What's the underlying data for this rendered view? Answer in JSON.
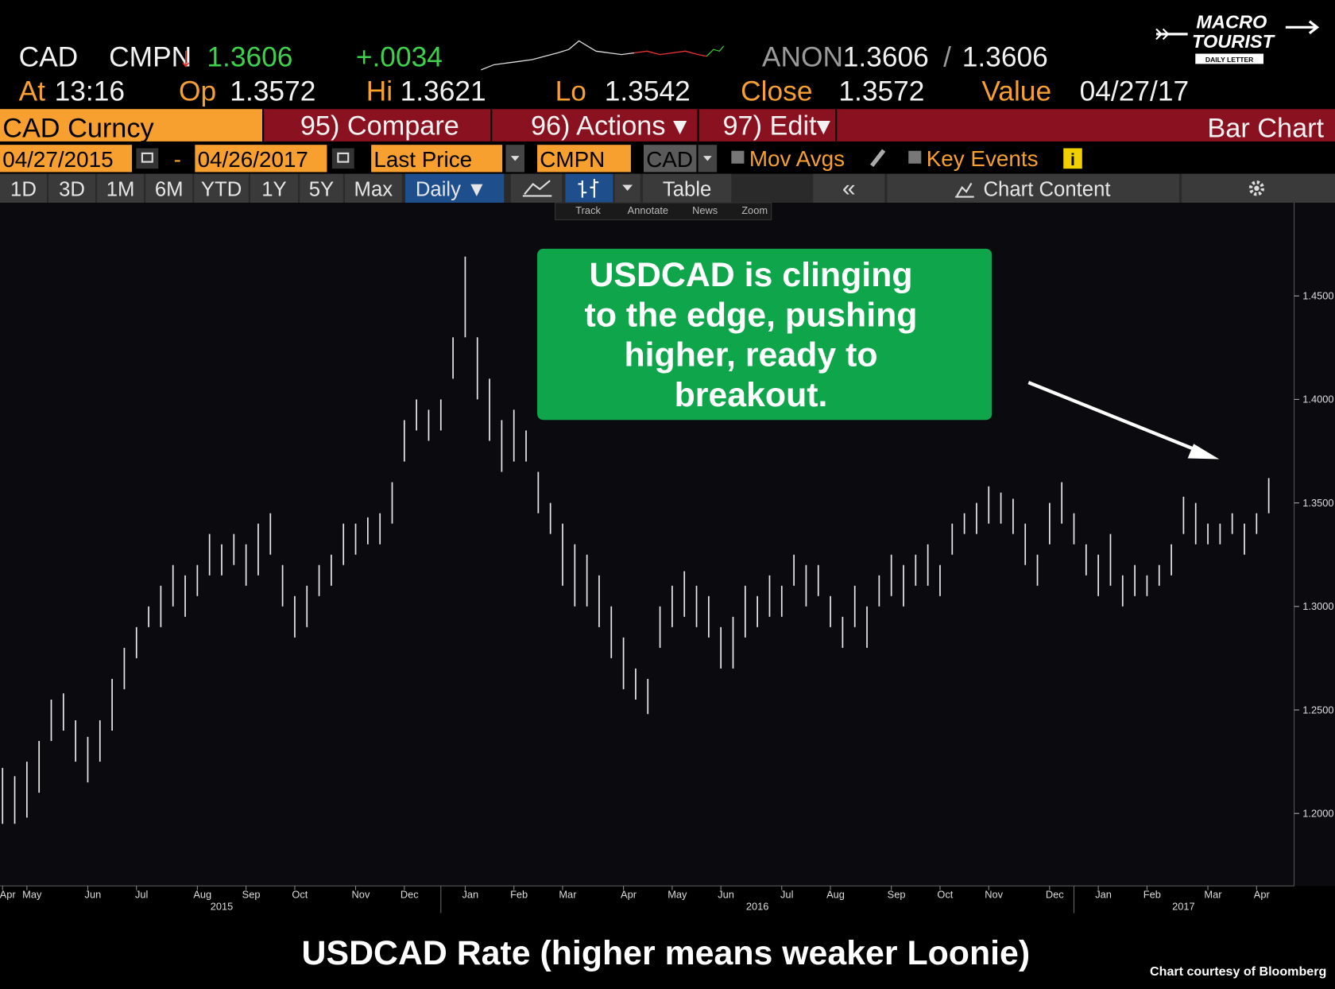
{
  "terminal": {
    "row1": {
      "ticker": "CAD",
      "source": "CMPN",
      "arrow": "↓",
      "last": "1.3606",
      "change": "+.0034",
      "pricing": "ANON",
      "bid": "1.3606",
      "sep": "/",
      "ask": "1.3606"
    },
    "row2": {
      "at_label": "At",
      "at": "13:16",
      "op_label": "Op",
      "op": "1.3572",
      "hi_label": "Hi",
      "hi": "1.3621",
      "lo_label": "Lo",
      "lo": "1.3542",
      "close_label": "Close",
      "close": "1.3572",
      "value_label": "Value",
      "value": "04/27/17"
    },
    "menu": {
      "security": "CAD Curncy",
      "compare": "95) Compare",
      "actions": "96) Actions ▾",
      "edit": "97) Edit▾",
      "chart_type": "Bar Chart"
    },
    "controls": {
      "start": "04/27/2015",
      "dash": "-",
      "end": "04/26/2017",
      "field": "Last Price",
      "source": "CMPN",
      "currency": "CAD",
      "mov_avgs": "Mov Avgs",
      "key_events": "Key Events",
      "info": "i"
    },
    "periods": [
      "1D",
      "3D",
      "1M",
      "6M",
      "YTD",
      "1Y",
      "5Y",
      "Max"
    ],
    "frequency": "Daily ▼",
    "table": "Table",
    "collapse": "«",
    "chart_content": "Chart Content",
    "tools": [
      "Track",
      "Annotate",
      "News",
      "Zoom"
    ]
  },
  "logo": {
    "line1": "MACRO",
    "line2": "TOURIST",
    "line3": "DAILY LETTER"
  },
  "chart_data": {
    "type": "ohlc",
    "title": "USDCAD Rate (higher means weaker Loonie)",
    "credit": "Chart courtesy of Bloomberg",
    "annotation": [
      "USDCAD is clinging",
      "to the edge, pushing",
      "higher, ready to",
      "breakout."
    ],
    "color": "#e8e8e8",
    "grid": false,
    "categories": [
      "Apr",
      null,
      "May",
      null,
      null,
      null,
      null,
      "Jun",
      null,
      null,
      null,
      "Jul",
      null,
      null,
      null,
      null,
      "Aug",
      null,
      null,
      null,
      "Sep",
      null,
      null,
      null,
      "Oct",
      null,
      null,
      null,
      null,
      "Nov",
      null,
      null,
      null,
      "Dec",
      null,
      null,
      null,
      null,
      "Jan",
      null,
      null,
      null,
      "Feb",
      null,
      null,
      null,
      "Mar",
      null,
      null,
      null,
      null,
      "Apr",
      null,
      null,
      null,
      "May",
      null,
      null,
      null,
      "Jun",
      null,
      null,
      null,
      null,
      "Jul",
      null,
      null,
      null,
      "Aug",
      null,
      null,
      null,
      null,
      "Sep",
      null,
      null,
      null,
      "Oct",
      null,
      null,
      null,
      "Nov",
      null,
      null,
      null,
      null,
      "Dec",
      null,
      null,
      null,
      "Jan",
      null,
      null,
      null,
      "Feb",
      null,
      null,
      null,
      null,
      "Mar",
      null,
      null,
      null,
      "Apr",
      null
    ],
    "years": [
      "2015",
      "2016",
      "2017"
    ],
    "high": [
      1.222,
      1.218,
      1.225,
      1.235,
      1.255,
      1.258,
      1.245,
      1.237,
      1.245,
      1.265,
      1.28,
      1.29,
      1.3,
      1.31,
      1.32,
      1.315,
      1.32,
      1.335,
      1.33,
      1.335,
      1.33,
      1.34,
      1.345,
      1.32,
      1.305,
      1.31,
      1.32,
      1.325,
      1.34,
      1.34,
      1.343,
      1.345,
      1.36,
      1.39,
      1.4,
      1.395,
      1.4,
      1.43,
      1.469,
      1.43,
      1.41,
      1.39,
      1.395,
      1.385,
      1.365,
      1.35,
      1.34,
      1.33,
      1.325,
      1.315,
      1.3,
      1.285,
      1.27,
      1.265,
      1.3,
      1.31,
      1.317,
      1.31,
      1.305,
      1.29,
      1.295,
      1.31,
      1.305,
      1.315,
      1.31,
      1.325,
      1.32,
      1.32,
      1.305,
      1.295,
      1.31,
      1.3,
      1.315,
      1.325,
      1.32,
      1.325,
      1.33,
      1.32,
      1.34,
      1.345,
      1.35,
      1.358,
      1.355,
      1.352,
      1.34,
      1.325,
      1.35,
      1.36,
      1.345,
      1.33,
      1.325,
      1.335,
      1.315,
      1.32,
      1.315,
      1.32,
      1.33,
      1.353,
      1.35,
      1.34,
      1.34,
      1.345,
      1.34,
      1.345,
      1.362
    ],
    "low": [
      1.195,
      1.195,
      1.198,
      1.21,
      1.235,
      1.24,
      1.225,
      1.215,
      1.225,
      1.24,
      1.26,
      1.275,
      1.29,
      1.29,
      1.3,
      1.295,
      1.305,
      1.315,
      1.315,
      1.32,
      1.31,
      1.315,
      1.325,
      1.3,
      1.285,
      1.29,
      1.305,
      1.31,
      1.32,
      1.325,
      1.33,
      1.33,
      1.34,
      1.37,
      1.385,
      1.38,
      1.385,
      1.41,
      1.43,
      1.4,
      1.38,
      1.365,
      1.37,
      1.37,
      1.345,
      1.335,
      1.31,
      1.3,
      1.3,
      1.29,
      1.275,
      1.26,
      1.255,
      1.248,
      1.28,
      1.29,
      1.295,
      1.29,
      1.285,
      1.27,
      1.27,
      1.285,
      1.29,
      1.295,
      1.295,
      1.31,
      1.3,
      1.305,
      1.29,
      1.28,
      1.29,
      1.28,
      1.3,
      1.305,
      1.3,
      1.31,
      1.31,
      1.305,
      1.325,
      1.335,
      1.335,
      1.34,
      1.34,
      1.335,
      1.32,
      1.31,
      1.33,
      1.34,
      1.33,
      1.315,
      1.305,
      1.31,
      1.3,
      1.305,
      1.305,
      1.31,
      1.315,
      1.335,
      1.33,
      1.33,
      1.33,
      1.335,
      1.325,
      1.335,
      1.345
    ],
    "ylim": [
      1.165,
      1.495
    ],
    "yticks": [
      {
        "value": 1.2,
        "label": "1.2000"
      },
      {
        "value": 1.25,
        "label": "1.2500"
      },
      {
        "value": 1.3,
        "label": "1.3000"
      },
      {
        "value": 1.35,
        "label": "1.3500"
      },
      {
        "value": 1.4,
        "label": "1.4000"
      },
      {
        "value": 1.45,
        "label": "1.4500"
      }
    ]
  }
}
